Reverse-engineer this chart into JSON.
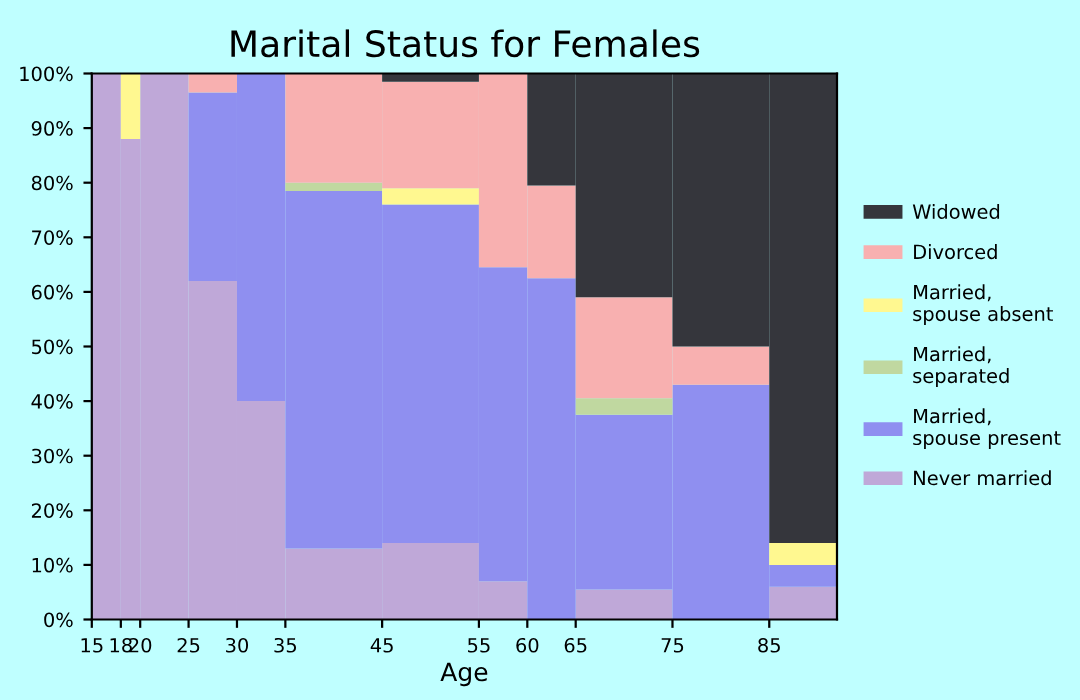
{
  "chart_data": {
    "type": "bar",
    "stacked": true,
    "title": "Marital Status for Females",
    "xlabel": "Age",
    "x": [
      16.5,
      19,
      22.5,
      27.5,
      32.5,
      40,
      50,
      57.5,
      62.5,
      70,
      80,
      88.5
    ],
    "xlim": [
      15,
      92
    ],
    "xticks": [
      15,
      18,
      20,
      25,
      30,
      35,
      45,
      55,
      60,
      65,
      75,
      85
    ],
    "ylim": [
      0,
      100
    ],
    "yticks": [
      {
        "value": 0,
        "label": "0%"
      },
      {
        "value": 10,
        "label": "10%"
      },
      {
        "value": 20,
        "label": "20%"
      },
      {
        "value": 30,
        "label": "30%"
      },
      {
        "value": 40,
        "label": "40%"
      },
      {
        "value": 50,
        "label": "50%"
      },
      {
        "value": 60,
        "label": "60%"
      },
      {
        "value": 70,
        "label": "70%"
      },
      {
        "value": 80,
        "label": "80%"
      },
      {
        "value": 90,
        "label": "90%"
      },
      {
        "value": 100,
        "label": "100%"
      }
    ],
    "grid": false,
    "legend": "right",
    "series": [
      {
        "name": "Never married",
        "color": "#bfa8d8",
        "values": [
          100,
          88,
          100,
          62,
          40,
          13,
          14,
          7,
          0,
          5.5,
          0,
          6
        ]
      },
      {
        "name": "Married,\nspouse present",
        "color": "#8f8ff0",
        "values": [
          0,
          0,
          0,
          34.5,
          60,
          65.5,
          62,
          57.5,
          62.5,
          32,
          43,
          4
        ]
      },
      {
        "name": "Married,\nseparated",
        "color": "#c0d8a0",
        "values": [
          0,
          0,
          0,
          0,
          0,
          1.5,
          0,
          0,
          0,
          3,
          0,
          0
        ]
      },
      {
        "name": "Married,\nspouse absent",
        "color": "#fff890",
        "values": [
          0,
          12,
          0,
          0,
          0,
          0,
          3,
          0,
          0,
          0,
          0,
          4
        ]
      },
      {
        "name": "Divorced",
        "color": "#f8b0b0",
        "values": [
          0,
          0,
          0,
          3.5,
          0,
          20,
          19.5,
          35.5,
          17,
          18.5,
          7,
          0
        ]
      },
      {
        "name": "Widowed",
        "color": "#35363c",
        "values": [
          0,
          0,
          0,
          0,
          0,
          0,
          1.5,
          0,
          20.5,
          41,
          50,
          86
        ]
      }
    ]
  }
}
